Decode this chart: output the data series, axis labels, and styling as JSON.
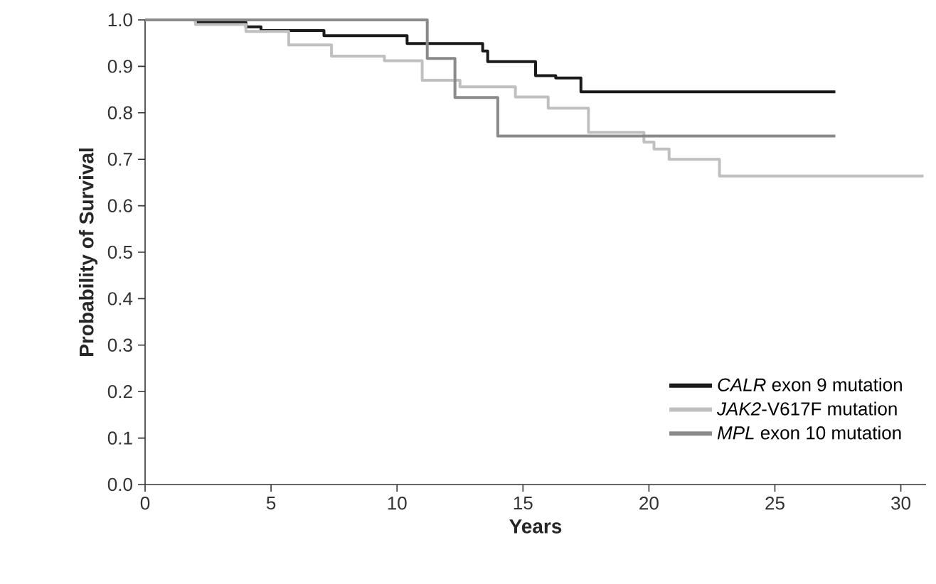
{
  "chart_data": {
    "type": "step",
    "xlabel": "Years",
    "ylabel": "Probability of Survival",
    "xlim": [
      0,
      31
    ],
    "ylim": [
      0,
      1.0
    ],
    "xticks": [
      0,
      5,
      10,
      15,
      20,
      25,
      30
    ],
    "yticks": [
      {
        "value": 0,
        "label": "0.0"
      },
      {
        "value": 0.1,
        "label": "0.1"
      },
      {
        "value": 0.2,
        "label": "0.2"
      },
      {
        "value": 0.3,
        "label": "0.3"
      },
      {
        "value": 0.4,
        "label": "0.4"
      },
      {
        "value": 0.5,
        "label": "0.5"
      },
      {
        "value": 0.6,
        "label": "0.6"
      },
      {
        "value": 0.7,
        "label": "0.7"
      },
      {
        "value": 0.8,
        "label": "0.8"
      },
      {
        "value": 0.9,
        "label": "0.9"
      },
      {
        "value": 1.0,
        "label": "1.0"
      }
    ],
    "legend": "bottom right",
    "grid": false,
    "series": [
      {
        "name": "*CALR* exon 9 mutation",
        "color": "#1a1a1a",
        "x": [
          0,
          2,
          4,
          4.6,
          7.1,
          10.4,
          13.4,
          13.6,
          15.5,
          16.3,
          17.3,
          27.4
        ],
        "values": [
          1.0,
          0.995,
          0.985,
          0.977,
          0.966,
          0.949,
          0.933,
          0.91,
          0.88,
          0.875,
          0.845,
          0.845
        ]
      },
      {
        "name": "*JAK2*-V617F mutation",
        "color": "#c0c0c0",
        "x": [
          0,
          2,
          4,
          5.7,
          7.4,
          9.5,
          11.0,
          12.5,
          14.7,
          16.0,
          17.6,
          19.8,
          20.2,
          20.8,
          22.8,
          30.9
        ],
        "values": [
          1.0,
          0.99,
          0.975,
          0.946,
          0.922,
          0.912,
          0.87,
          0.856,
          0.834,
          0.81,
          0.758,
          0.737,
          0.722,
          0.7,
          0.664,
          0.664
        ]
      },
      {
        "name": "*MPL* exon 10 mutation",
        "color": "#8a8a8a",
        "x": [
          0,
          11.2,
          12.3,
          14.0,
          27.4
        ],
        "values": [
          1.0,
          0.917,
          0.833,
          0.75,
          0.75
        ]
      }
    ]
  }
}
